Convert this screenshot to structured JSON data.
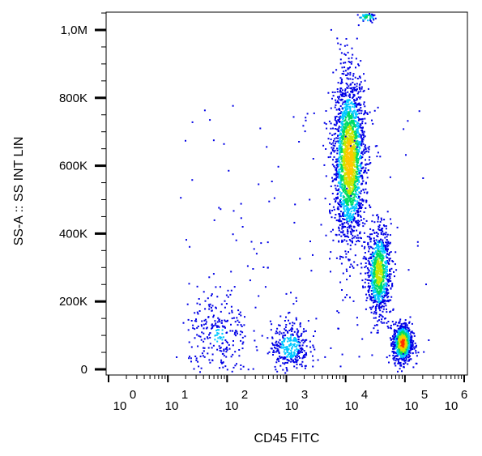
{
  "chart_data": {
    "type": "scatter",
    "subtype": "flow-cytometry density dot plot",
    "xlabel": "CD45 FITC",
    "ylabel": "SS-A :: SS INT LIN",
    "x_scale": "log",
    "xlim": [
      1,
      1000000
    ],
    "ylim": [
      0,
      1050000
    ],
    "x_ticks": [
      {
        "base": "10",
        "exp": "0",
        "value": 1
      },
      {
        "base": "10",
        "exp": "1",
        "value": 10
      },
      {
        "base": "10",
        "exp": "2",
        "value": 100
      },
      {
        "base": "10",
        "exp": "3",
        "value": 1000
      },
      {
        "base": "10",
        "exp": "4",
        "value": 10000
      },
      {
        "base": "10",
        "exp": "5",
        "value": 100000
      },
      {
        "base": "10",
        "exp": "6",
        "value": 1000000
      }
    ],
    "y_ticks": [
      {
        "label": "0",
        "value": 0
      },
      {
        "label": "200K",
        "value": 200000
      },
      {
        "label": "400K",
        "value": 400000
      },
      {
        "label": "600K",
        "value": 600000
      },
      {
        "label": "800K",
        "value": 800000
      },
      {
        "label": "1,0M",
        "value": 1000000
      }
    ],
    "grid": false,
    "legend": "none",
    "colormap": [
      "#0000e6",
      "#00c8ff",
      "#00dc64",
      "#c8e600",
      "#ffc800",
      "#ff3000"
    ],
    "populations": [
      {
        "x_log_center": 4.05,
        "x_log_sd": 0.13,
        "y_center": 620000,
        "y_sd": 120000,
        "density": 0.9
      },
      {
        "x_log_center": 4.55,
        "x_log_sd": 0.1,
        "y_center": 290000,
        "y_sd": 65000,
        "density": 0.75
      },
      {
        "x_log_center": 4.95,
        "x_log_sd": 0.08,
        "y_center": 80000,
        "y_sd": 28000,
        "density": 1.0
      },
      {
        "x_log_center": 3.05,
        "x_log_sd": 0.16,
        "y_center": 70000,
        "y_sd": 35000,
        "density": 0.45
      },
      {
        "x_log_center": 1.85,
        "x_log_sd": 0.25,
        "y_center": 100000,
        "y_sd": 70000,
        "density": 0.3
      },
      {
        "x_log_center": 4.35,
        "x_log_sd": 0.09,
        "y_center": 1040000,
        "y_sd": 8000,
        "density": 0.6
      }
    ]
  }
}
